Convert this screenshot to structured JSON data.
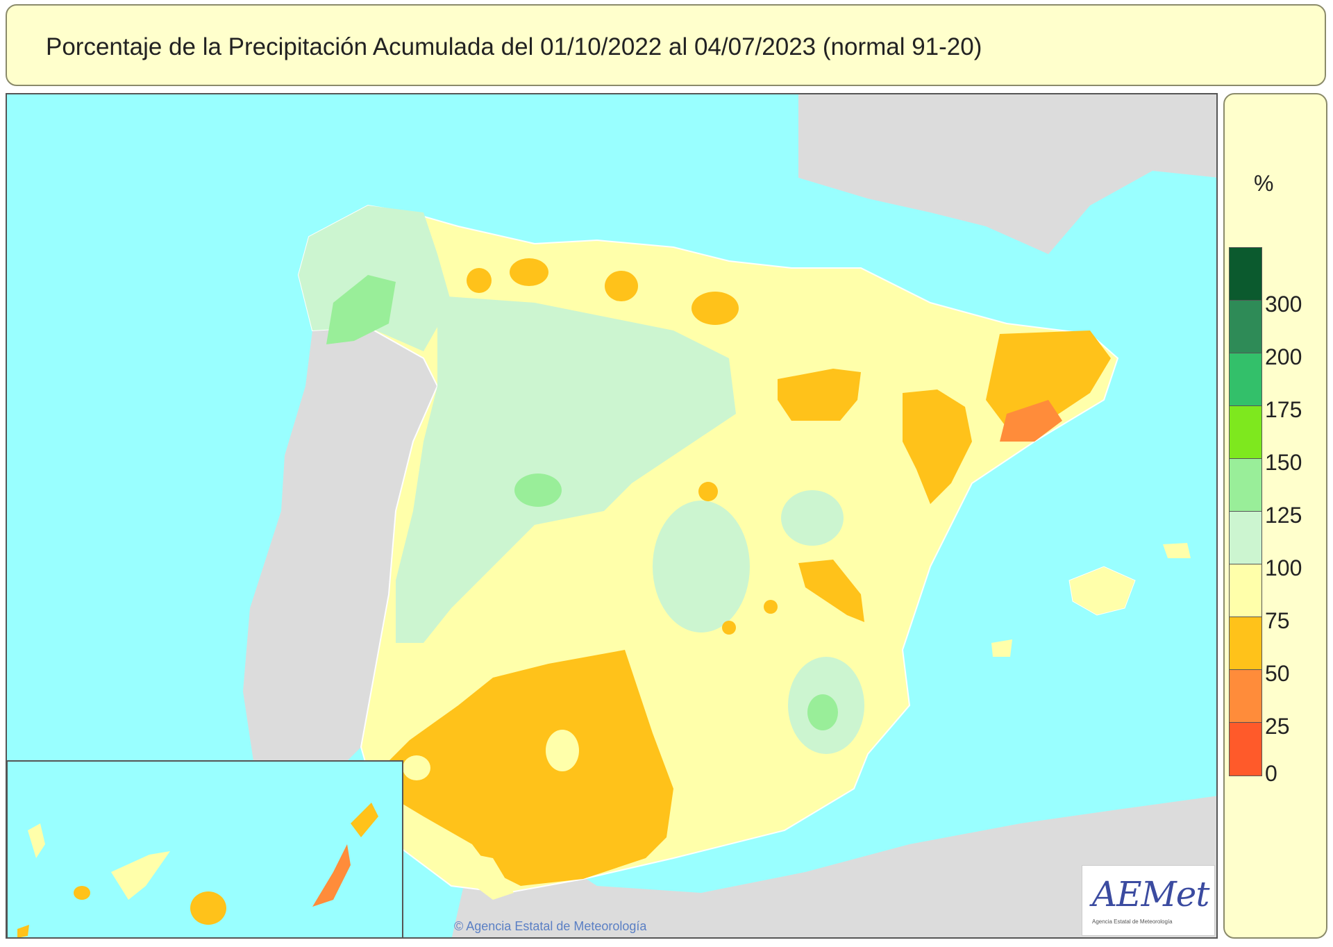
{
  "header": {
    "title": "Porcentaje de la Precipitación Acumulada del 01/10/2022 al 04/07/2023 (normal 91-20)"
  },
  "legend": {
    "unit": "%",
    "ticks": [
      "300",
      "200",
      "175",
      "150",
      "125",
      "100",
      "75",
      "50",
      "25",
      "0"
    ],
    "colors": [
      "#0b5a2e",
      "#2e8b57",
      "#33c06a",
      "#7ee81e",
      "#99ee99",
      "#ccf5d0",
      "#ffffaa",
      "#ffc21a",
      "#ff8c3a",
      "#ff5a2a"
    ]
  },
  "map": {
    "sea_color": "#99ffff",
    "land_other_color": "#dcdcdc",
    "outline_color": "#ffffff"
  },
  "logo": {
    "text": "AEMet",
    "subtitle": "Agencia Estatal de Meteorología"
  },
  "credit": "© Agencia Estatal de Meteorología"
}
